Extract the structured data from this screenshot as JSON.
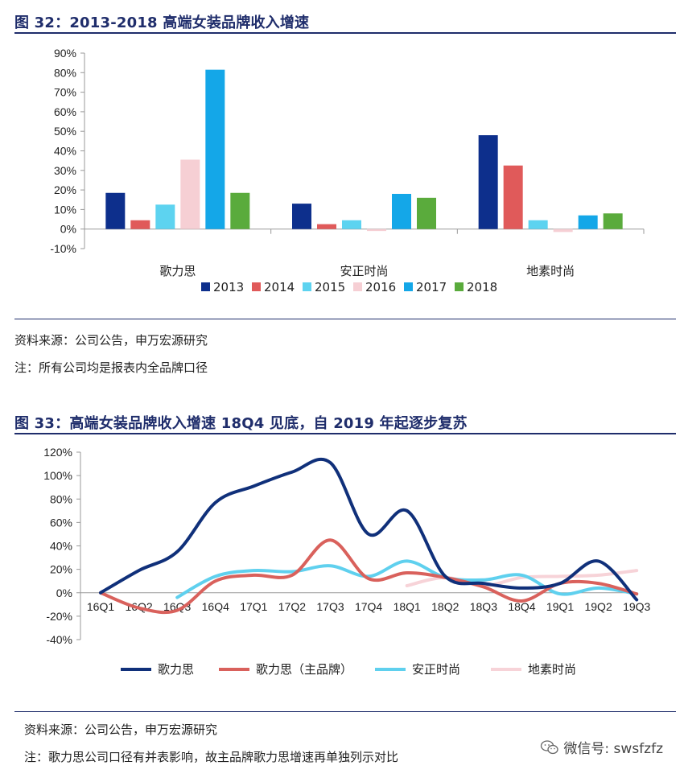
{
  "figure1": {
    "title": "图 32：2013-2018 高端女装品牌收入增速",
    "source": "资料来源：公司公告，申万宏源研究",
    "note": "注：所有公司均是报表内全品牌口径"
  },
  "figure2": {
    "title": "图 33：高端女装品牌收入增速 18Q4 见底，自 2019 年起逐步复苏",
    "source": "资料来源：公司公告，申万宏源研究",
    "note": "注：歌力思公司口径有并表影响，故主品牌歌力思增速再单独列示对比"
  },
  "watermark": {
    "text": "微信号: swsfzfz",
    "icon": "wechat-icon"
  },
  "chart_data": [
    {
      "type": "bar",
      "categories": [
        "歌力思",
        "安正时尚",
        "地素时尚"
      ],
      "series": [
        {
          "name": "2013",
          "color": "#0d2f8c",
          "values": [
            18.5,
            13,
            48
          ]
        },
        {
          "name": "2014",
          "color": "#e05a5a",
          "values": [
            4.5,
            2.5,
            32.5
          ]
        },
        {
          "name": "2015",
          "color": "#5dd3f0",
          "values": [
            12.5,
            4.5,
            4.5
          ]
        },
        {
          "name": "2016",
          "color": "#f6cfd4",
          "values": [
            35.5,
            -1,
            -1.5
          ]
        },
        {
          "name": "2017",
          "color": "#14a7e8",
          "values": [
            81.5,
            18,
            7
          ]
        },
        {
          "name": "2018",
          "color": "#5aab3c",
          "values": [
            18.5,
            16,
            8
          ]
        }
      ],
      "ylim": [
        -10,
        90
      ],
      "yticks": [
        "-10%",
        "0%",
        "10%",
        "20%",
        "30%",
        "40%",
        "50%",
        "60%",
        "70%",
        "80%",
        "90%"
      ],
      "legend": "bottom",
      "grid": false
    },
    {
      "type": "line",
      "categories": [
        "16Q1",
        "16Q2",
        "16Q3",
        "16Q4",
        "17Q1",
        "17Q2",
        "17Q3",
        "17Q4",
        "18Q1",
        "18Q2",
        "18Q3",
        "18Q4",
        "19Q1",
        "19Q2",
        "19Q3"
      ],
      "series": [
        {
          "name": "歌力思",
          "color": "#10307a",
          "values": [
            0,
            19,
            35,
            77,
            91,
            103,
            111,
            50,
            70,
            14,
            8,
            4,
            8,
            27,
            -6
          ]
        },
        {
          "name": "歌力思（主品牌）",
          "color": "#d9615c",
          "values": [
            0,
            -13,
            -15,
            10,
            15,
            15,
            45,
            12,
            17,
            13,
            5,
            -7,
            8,
            8,
            -1
          ]
        },
        {
          "name": "安正时尚",
          "color": "#5fd0ee",
          "values": [
            null,
            null,
            -4,
            14,
            19,
            18,
            23,
            14,
            27,
            13,
            11,
            15,
            -1,
            4,
            -1
          ]
        },
        {
          "name": "地素时尚",
          "color": "#f7d3d8",
          "values": [
            null,
            null,
            null,
            null,
            null,
            null,
            null,
            null,
            6,
            13,
            6,
            13,
            14,
            15,
            19
          ]
        }
      ],
      "ylim": [
        -40,
        120
      ],
      "yticks": [
        "-40%",
        "-20%",
        "0%",
        "20%",
        "40%",
        "60%",
        "80%",
        "100%",
        "120%"
      ],
      "legend": "bottom",
      "grid": false
    }
  ]
}
